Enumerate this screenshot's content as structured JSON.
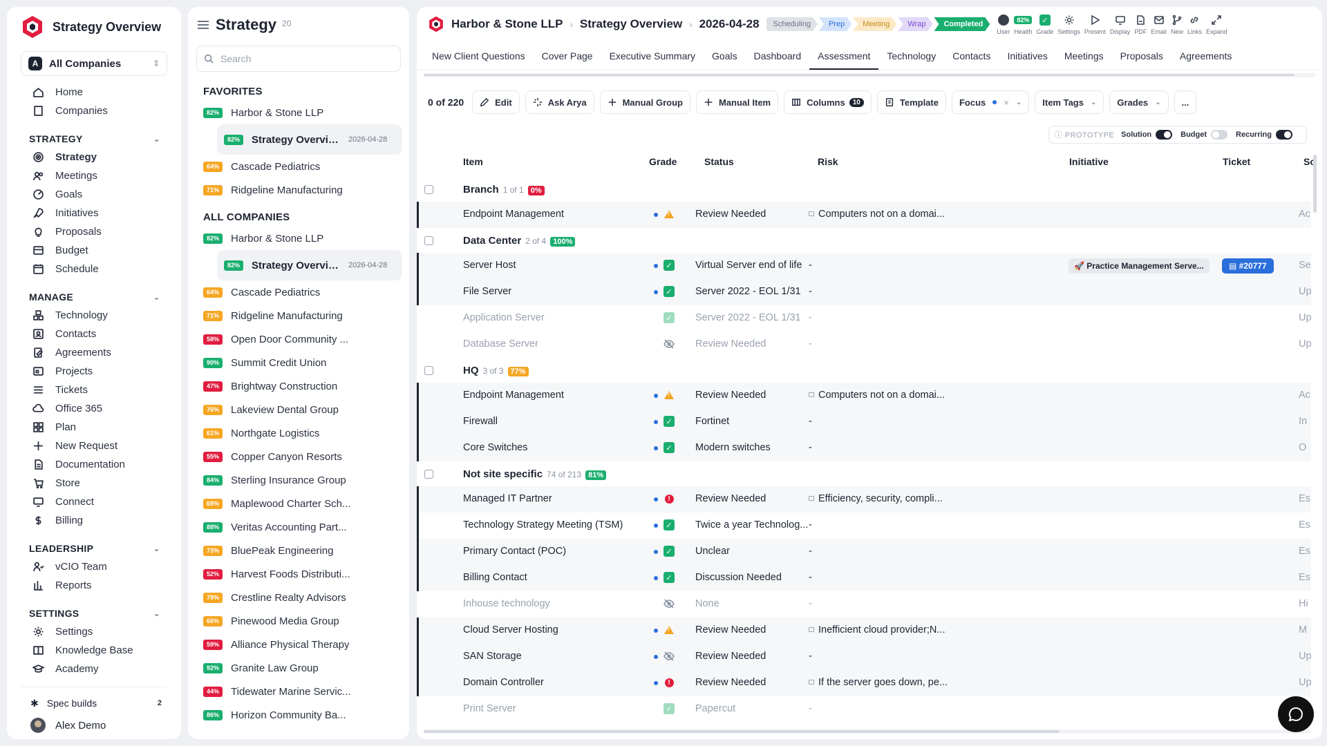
{
  "colors": {
    "green": "#1aae6f",
    "orange": "#f5a623",
    "red": "#e11d3f",
    "blue": "#2a6fdb",
    "dark": "#1d2330"
  },
  "sidebar": {
    "app_title": "Strategy Overview",
    "company_select": {
      "badge": "A",
      "label": "All Companies"
    },
    "top_items": [
      {
        "label": "Home",
        "icon": "home-icon"
      },
      {
        "label": "Companies",
        "icon": "building-icon"
      }
    ],
    "sections": [
      {
        "title": "STRATEGY",
        "items": [
          {
            "label": "Strategy",
            "icon": "target-icon",
            "active": true
          },
          {
            "label": "Meetings",
            "icon": "users-icon"
          },
          {
            "label": "Goals",
            "icon": "goal-icon"
          },
          {
            "label": "Initiatives",
            "icon": "rocket-icon"
          },
          {
            "label": "Proposals",
            "icon": "lightbulb-icon"
          },
          {
            "label": "Budget",
            "icon": "budget-icon"
          },
          {
            "label": "Schedule",
            "icon": "calendar-icon"
          }
        ]
      },
      {
        "title": "MANAGE",
        "items": [
          {
            "label": "Technology",
            "icon": "cubes-icon"
          },
          {
            "label": "Contacts",
            "icon": "contact-icon"
          },
          {
            "label": "Agreements",
            "icon": "agreement-icon"
          },
          {
            "label": "Projects",
            "icon": "projects-icon"
          },
          {
            "label": "Tickets",
            "icon": "ticket-icon"
          },
          {
            "label": "Office 365",
            "icon": "cloud-icon"
          },
          {
            "label": "Plan",
            "icon": "grid-icon"
          },
          {
            "label": "New Request",
            "icon": "plus-icon"
          },
          {
            "label": "Documentation",
            "icon": "doc-icon"
          },
          {
            "label": "Store",
            "icon": "cart-icon"
          },
          {
            "label": "Connect",
            "icon": "monitor-icon"
          },
          {
            "label": "Billing",
            "icon": "dollar-icon"
          }
        ]
      },
      {
        "title": "LEADERSHIP",
        "items": [
          {
            "label": "vCIO Team",
            "icon": "team-icon"
          },
          {
            "label": "Reports",
            "icon": "chart-icon"
          }
        ]
      },
      {
        "title": "SETTINGS",
        "items": [
          {
            "label": "Settings",
            "icon": "gear-icon"
          },
          {
            "label": "Knowledge Base",
            "icon": "book-icon"
          },
          {
            "label": "Academy",
            "icon": "graduation-icon"
          }
        ]
      }
    ],
    "spec_builds": {
      "label": "Spec builds",
      "count": "2"
    },
    "user": {
      "name": "Alex Demo"
    }
  },
  "list": {
    "title": "Strategy",
    "count": "20",
    "search_placeholder": "Search",
    "favorites_title": "FAVORITES",
    "all_title": "ALL COMPANIES",
    "favorites": [
      {
        "name": "Harbor & Stone LLP",
        "pct": "82%",
        "color": "#1aae6f",
        "sub": {
          "name": "Strategy Overview",
          "date": "2026-04-28",
          "pct": "82%"
        }
      },
      {
        "name": "Cascade Pediatrics",
        "pct": "64%",
        "color": "#f5a623"
      },
      {
        "name": "Ridgeline Manufacturing",
        "pct": "71%",
        "color": "#f5a623"
      }
    ],
    "all": [
      {
        "name": "Harbor & Stone LLP",
        "pct": "82%",
        "color": "#1aae6f",
        "sub": {
          "name": "Strategy Overview",
          "date": "2026-04-28",
          "pct": "82%"
        }
      },
      {
        "name": "Cascade Pediatrics",
        "pct": "64%",
        "color": "#f5a623"
      },
      {
        "name": "Ridgeline Manufacturing",
        "pct": "71%",
        "color": "#f5a623"
      },
      {
        "name": "Open Door Community ...",
        "pct": "58%",
        "color": "#e11d3f"
      },
      {
        "name": "Summit Credit Union",
        "pct": "90%",
        "color": "#1aae6f"
      },
      {
        "name": "Brightway Construction",
        "pct": "47%",
        "color": "#e11d3f"
      },
      {
        "name": "Lakeview Dental Group",
        "pct": "76%",
        "color": "#f5a623"
      },
      {
        "name": "Northgate Logistics",
        "pct": "61%",
        "color": "#f5a623"
      },
      {
        "name": "Copper Canyon Resorts",
        "pct": "55%",
        "color": "#e11d3f"
      },
      {
        "name": "Sterling Insurance Group",
        "pct": "84%",
        "color": "#1aae6f"
      },
      {
        "name": "Maplewood Charter Sch...",
        "pct": "68%",
        "color": "#f5a623"
      },
      {
        "name": "Veritas Accounting Part...",
        "pct": "88%",
        "color": "#1aae6f"
      },
      {
        "name": "BluePeak Engineering",
        "pct": "73%",
        "color": "#f5a623"
      },
      {
        "name": "Harvest Foods Distributi...",
        "pct": "52%",
        "color": "#e11d3f"
      },
      {
        "name": "Crestline Realty Advisors",
        "pct": "79%",
        "color": "#f5a623"
      },
      {
        "name": "Pinewood Media Group",
        "pct": "66%",
        "color": "#f5a623"
      },
      {
        "name": "Alliance Physical Therapy",
        "pct": "59%",
        "color": "#e11d3f"
      },
      {
        "name": "Granite Law Group",
        "pct": "92%",
        "color": "#1aae6f"
      },
      {
        "name": "Tidewater Marine Servic...",
        "pct": "44%",
        "color": "#e11d3f"
      },
      {
        "name": "Horizon Community Ba...",
        "pct": "86%",
        "color": "#1aae6f"
      }
    ]
  },
  "main": {
    "breadcrumb": [
      "Harbor & Stone LLP",
      "Strategy Overview",
      "2026-04-28"
    ],
    "steps": [
      {
        "label": "Scheduling",
        "bg": "#dfe2e7",
        "fg": "#6b7280"
      },
      {
        "label": "Prep",
        "bg": "#d3e3fb",
        "fg": "#2a6fdb"
      },
      {
        "label": "Meeting",
        "bg": "#fbe9c7",
        "fg": "#c88a17"
      },
      {
        "label": "Wrap",
        "bg": "#e2d8f7",
        "fg": "#7c4dd6"
      },
      {
        "label": "Completed",
        "bg": "#1aae6f",
        "fg": "#ffffff"
      }
    ],
    "top_actions": [
      {
        "label": "User",
        "icon": "user-avatar-icon"
      },
      {
        "label": "Health",
        "icon": "health-badge",
        "value": "82%"
      },
      {
        "label": "Grade",
        "icon": "grade-check-icon"
      },
      {
        "label": "Settings",
        "icon": "gear-icon"
      },
      {
        "label": "Present",
        "icon": "play-icon"
      },
      {
        "label": "Display",
        "icon": "monitor-icon"
      },
      {
        "label": "PDF",
        "icon": "pdf-icon"
      },
      {
        "label": "Email",
        "icon": "mail-icon"
      },
      {
        "label": "New",
        "icon": "branch-icon"
      },
      {
        "label": "Links",
        "icon": "link-icon"
      },
      {
        "label": "Expand",
        "icon": "expand-icon"
      }
    ],
    "tabs": [
      "New Client Questions",
      "Cover Page",
      "Executive Summary",
      "Goals",
      "Dashboard",
      "Assessment",
      "Technology",
      "Contacts",
      "Initiatives",
      "Meetings",
      "Proposals",
      "Agreements"
    ],
    "active_tab": "Assessment",
    "toolbar": {
      "count": "0 of 220",
      "edit": "Edit",
      "ask": "Ask Arya",
      "manual_group": "Manual Group",
      "manual_item": "Manual Item",
      "columns": "Columns",
      "columns_count": "10",
      "template": "Template",
      "focus": "Focus",
      "item_tags": "Item Tags",
      "grades": "Grades",
      "more": "..."
    },
    "prototype": {
      "label": "PROTOTYPE",
      "toggles": [
        {
          "label": "Solution",
          "on": true
        },
        {
          "label": "Budget",
          "on": false
        },
        {
          "label": "Recurring",
          "on": true
        }
      ]
    },
    "columns": {
      "item": "Item",
      "grade": "Grade",
      "status": "Status",
      "risk": "Risk",
      "initiative": "Initiative",
      "ticket": "Ticket",
      "sc": "Sc"
    },
    "groups": [
      {
        "name": "Branch",
        "meta": "1 of 1",
        "pct": "0%",
        "pct_color": "#e11d3f",
        "rows": [
          {
            "item": "Endpoint Management",
            "grade": "warn",
            "status": "Review Needed",
            "risk": "Computers not on a domai...",
            "lock": true,
            "sc": "Ac",
            "bg": "gray"
          }
        ]
      },
      {
        "name": "Data Center",
        "meta": "2 of 4",
        "pct": "100%",
        "pct_color": "#1aae6f",
        "rows": [
          {
            "item": "Server Host",
            "grade": "check",
            "status": "Virtual Server end of life",
            "risk": "-",
            "initiative": "Practice Management Serve...",
            "ticket": "#20777",
            "sc": "Se",
            "bg": "gray"
          },
          {
            "item": "File Server",
            "grade": "check",
            "status": "Server 2022 - EOL 1/31",
            "risk": "-",
            "sc": "Up",
            "bg": "gray"
          },
          {
            "item": "Application Server",
            "grade": "check",
            "status": "Server 2022 - EOL 1/31",
            "risk": "-",
            "sc": "Up",
            "dim": true
          },
          {
            "item": "Database Server",
            "grade": "hide",
            "status": "Review Needed",
            "risk": "-",
            "sc": "Up",
            "dim": true
          }
        ]
      },
      {
        "name": "HQ",
        "meta": "3 of 3",
        "pct": "77%",
        "pct_color": "#f5a623",
        "rows": [
          {
            "item": "Endpoint Management",
            "grade": "warn",
            "status": "Review Needed",
            "risk": "Computers not on a domai...",
            "lock": true,
            "sc": "Ac",
            "bg": "gray"
          },
          {
            "item": "Firewall",
            "grade": "check",
            "status": "Fortinet",
            "risk": "-",
            "sc": "In",
            "bg": "gray"
          },
          {
            "item": "Core Switches",
            "grade": "check",
            "status": "Modern switches",
            "risk": "-",
            "sc": "O",
            "bg": "gray"
          }
        ]
      },
      {
        "name": "Not site specific",
        "meta": "74 of 213",
        "pct": "81%",
        "pct_color": "#1aae6f",
        "rows": [
          {
            "item": "Managed IT Partner",
            "grade": "err",
            "status": "Review Needed",
            "risk": "Efficiency, security, compli...",
            "lock": true,
            "sc": "Es",
            "bg": "gray"
          },
          {
            "item": "Technology Strategy Meeting (TSM)",
            "grade": "check",
            "status": "Twice a year Technolog...",
            "risk": "-",
            "sc": "Es",
            "bg": "white"
          },
          {
            "item": "Primary Contact (POC)",
            "grade": "check",
            "status": "Unclear",
            "risk": "-",
            "sc": "Es",
            "bg": "gray"
          },
          {
            "item": "Billing Contact",
            "grade": "check",
            "status": "Discussion Needed",
            "risk": "-",
            "sc": "Es",
            "bg": "gray"
          },
          {
            "item": "Inhouse technology",
            "grade": "hide",
            "status": "None",
            "risk": "-",
            "sc": "Hi",
            "dim": true
          },
          {
            "item": "Cloud Server Hosting",
            "grade": "warn",
            "status": "Review Needed",
            "risk": "Inefficient cloud provider;N...",
            "lock": true,
            "sc": "M",
            "bg": "gray"
          },
          {
            "item": "SAN Storage",
            "grade": "hide",
            "status": "Review Needed",
            "risk": "-",
            "sc": "Up",
            "bg": "gray"
          },
          {
            "item": "Domain Controller",
            "grade": "err",
            "status": "Review Needed",
            "risk": "If the server goes down, pe...",
            "lock": true,
            "sc": "Up",
            "bg": "gray"
          },
          {
            "item": "Print Server",
            "grade": "check",
            "status": "Papercut",
            "risk": "-",
            "sc": "Up",
            "dim": true
          }
        ]
      }
    ]
  }
}
